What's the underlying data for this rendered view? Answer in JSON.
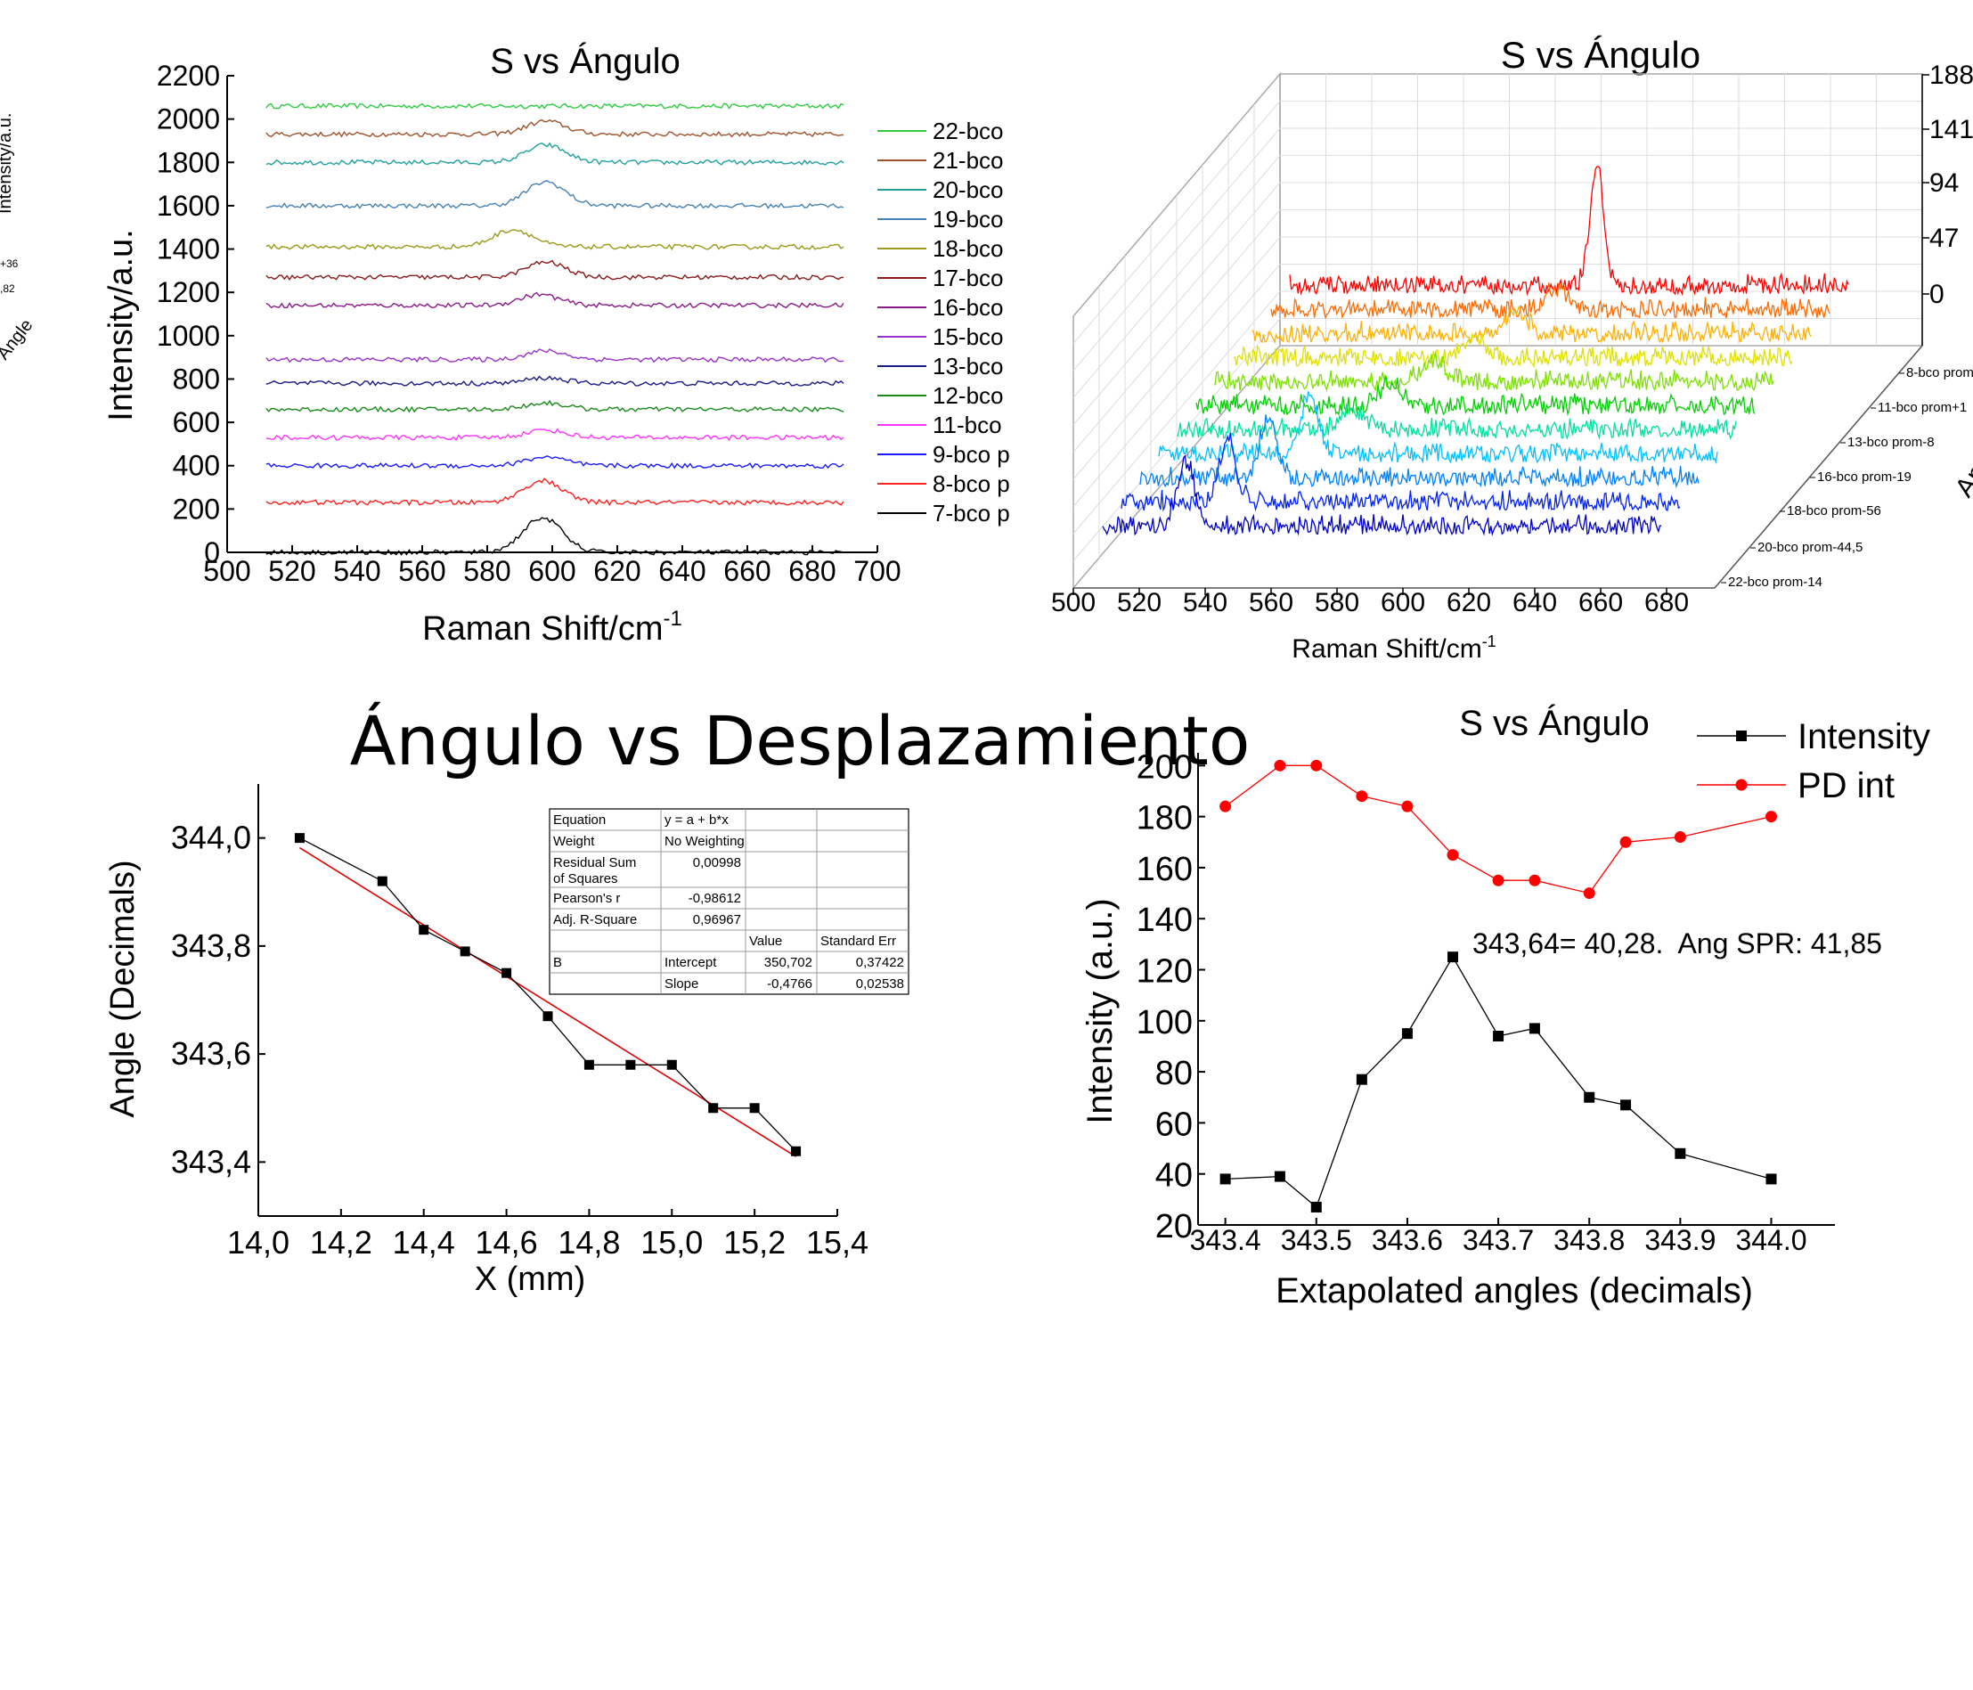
{
  "chart_data": [
    {
      "type": "line",
      "panel": "stacked-raman-spectra",
      "title": "S vs Ángulo",
      "xlabel": "Raman Shift/cm",
      "xlabel_sup": "-1",
      "ylabel": "Intensity/a.u.",
      "xlim": [
        500,
        700
      ],
      "ylim": [
        0,
        2200
      ],
      "x_ticks": [
        "500",
        "520",
        "540",
        "560",
        "580",
        "600",
        "620",
        "640",
        "660",
        "680",
        "700"
      ],
      "y_ticks": [
        "0",
        "200",
        "400",
        "600",
        "800",
        "1000",
        "1200",
        "1400",
        "1600",
        "1800",
        "2000",
        "2200"
      ],
      "legend_position": "right",
      "series": [
        {
          "name": "22-bco",
          "color": "#2ecc40",
          "baseline": 2060,
          "peak_x": 598,
          "peak_h": 0
        },
        {
          "name": "21-bco",
          "color": "#a0522d",
          "baseline": 1930,
          "peak_x": 598,
          "peak_h": 60
        },
        {
          "name": "20-bco",
          "color": "#20a0a0",
          "baseline": 1800,
          "peak_x": 598,
          "peak_h": 80
        },
        {
          "name": "19-bco",
          "color": "#4682b4",
          "baseline": 1600,
          "peak_x": 598,
          "peak_h": 110
        },
        {
          "name": "18-bco",
          "color": "#9a9a1a",
          "baseline": 1410,
          "peak_x": 588,
          "peak_h": 80
        },
        {
          "name": "17-bco",
          "color": "#8b1a1a",
          "baseline": 1270,
          "peak_x": 598,
          "peak_h": 70
        },
        {
          "name": "16-bco",
          "color": "#8b1a8b",
          "baseline": 1140,
          "peak_x": 596,
          "peak_h": 50
        },
        {
          "name": "15-bco",
          "color": "#9932cc",
          "baseline": 890,
          "peak_x": 598,
          "peak_h": 40
        },
        {
          "name": "13-bco",
          "color": "#1a1a8b",
          "baseline": 780,
          "peak_x": 598,
          "peak_h": 25
        },
        {
          "name": "12-bco",
          "color": "#1a8b1a",
          "baseline": 660,
          "peak_x": 598,
          "peak_h": 30
        },
        {
          "name": "11-bco",
          "color": "#ff33ff",
          "baseline": 530,
          "peak_x": 598,
          "peak_h": 35
        },
        {
          "name": "9-bco p",
          "color": "#1a1aff",
          "baseline": 400,
          "peak_x": 598,
          "peak_h": 40
        },
        {
          "name": "8-bco p",
          "color": "#ff2020",
          "baseline": 230,
          "peak_x": 597,
          "peak_h": 100
        },
        {
          "name": "7-bco p",
          "color": "#000000",
          "baseline": 0,
          "peak_x": 597,
          "peak_h": 160
        }
      ]
    },
    {
      "type": "area",
      "panel": "waterfall-3d",
      "title": "S vs Ángulo",
      "xlabel": "Raman Shift/cm",
      "xlabel_sup": "-1",
      "xlim": [
        500,
        690
      ],
      "x_ticks": [
        "500",
        "520",
        "540",
        "560",
        "580",
        "600",
        "620",
        "640",
        "660",
        "680"
      ],
      "z_ticks": [
        "0",
        "47",
        "94",
        "141",
        "188"
      ],
      "depth_labels": [
        "8-bco prom",
        "11-bco prom+1",
        "13-bco prom-8",
        "16-bco prom-19",
        "18-bco prom-56",
        "20-bco prom-44,5",
        "22-bco prom-14"
      ],
      "depth_axis_label": "An",
      "series_colors": [
        "#ff0000",
        "#ff6a00",
        "#ffb000",
        "#e0e000",
        "#7de000",
        "#00d000",
        "#00e0a0",
        "#00c0ff",
        "#0080ff",
        "#0020ff",
        "#0000c8"
      ]
    },
    {
      "type": "scatter",
      "panel": "angle-vs-displacement",
      "title": "Ángulo vs Desplazamiento",
      "xlabel": "X (mm)",
      "ylabel": "Angle (Decimals)",
      "xlim": [
        14.0,
        15.4
      ],
      "ylim": [
        343.3,
        344.1
      ],
      "x_ticks": [
        "14,0",
        "14,2",
        "14,4",
        "14,6",
        "14,8",
        "15,0",
        "15,2",
        "15,4"
      ],
      "y_ticks": [
        "343,4",
        "343,6",
        "343,8",
        "344,0"
      ],
      "x": [
        14.1,
        14.3,
        14.4,
        14.5,
        14.6,
        14.7,
        14.8,
        14.9,
        15.0,
        15.1,
        15.2,
        15.3
      ],
      "y": [
        344.0,
        343.92,
        343.83,
        343.79,
        343.75,
        343.67,
        343.58,
        343.58,
        343.58,
        343.5,
        343.5,
        343.42
      ],
      "fit": {
        "intercept": 350.702,
        "slope": -0.4766,
        "color": "#e00000"
      },
      "fit_table": {
        "rows": [
          [
            "Equation",
            "y = a + b*x",
            "",
            ""
          ],
          [
            "Weight",
            "No Weighting",
            "",
            ""
          ],
          [
            "Residual Sum\nof Squares",
            "0,00998",
            "",
            ""
          ],
          [
            "Pearson's r",
            "-0,98612",
            "",
            ""
          ],
          [
            "Adj. R-Square",
            "0,96967",
            "",
            ""
          ],
          [
            "",
            "",
            "Value",
            "Standard Err"
          ],
          [
            "B",
            "Intercept",
            "350,702",
            "0,37422"
          ],
          [
            "",
            "Slope",
            "-0,4766",
            "0,02538"
          ]
        ]
      }
    },
    {
      "type": "line",
      "panel": "intensity-vs-angle",
      "title": "S vs Ángulo",
      "xlabel": "Extapolated angles (decimals)",
      "ylabel": "Intensity (a.u.)",
      "xlim": [
        343.37,
        344.07
      ],
      "ylim": [
        20,
        205
      ],
      "x_ticks": [
        "343.4",
        "343.5",
        "343.6",
        "343.7",
        "343.8",
        "343.9",
        "344.0"
      ],
      "y_ticks": [
        "20",
        "40",
        "60",
        "80",
        "100",
        "120",
        "140",
        "160",
        "180",
        "200"
      ],
      "annotation": "343,64= 40,28.  Ang SPR: 41,85",
      "legend_position": "top-right",
      "series": [
        {
          "name": "Intensity",
          "color": "#000000",
          "marker": "square",
          "x": [
            343.4,
            343.46,
            343.5,
            343.55,
            343.6,
            343.65,
            343.7,
            343.74,
            343.8,
            343.84,
            343.9,
            344.0
          ],
          "y": [
            38,
            39,
            27,
            77,
            95,
            125,
            94,
            97,
            70,
            67,
            48,
            38
          ]
        },
        {
          "name": "PD int",
          "color": "#ff0000",
          "marker": "circle",
          "x": [
            343.4,
            343.46,
            343.5,
            343.55,
            343.6,
            343.65,
            343.7,
            343.74,
            343.8,
            343.84,
            343.9,
            344.0
          ],
          "y": [
            184,
            200,
            200,
            188,
            184,
            165,
            155,
            155,
            150,
            170,
            172,
            180
          ]
        }
      ]
    }
  ],
  "edge_crop_left": {
    "ylabel": "Intensity/a.u.",
    "tick_a": "+36",
    "tick_b": ",82",
    "axis_label": "Angle"
  }
}
